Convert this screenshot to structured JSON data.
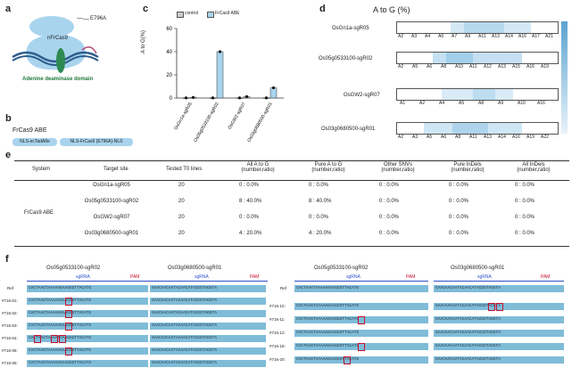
{
  "panels": {
    "a": "a",
    "b": "b",
    "c": "c",
    "d": "d",
    "e": "e",
    "f": "f"
  },
  "panel_a": {
    "mutation": "E796A",
    "protein": "nFrCas9",
    "domain": "Adenine deaminase domain"
  },
  "panel_b": {
    "title": "FrCas9 ABE",
    "parts": [
      "NLS-ecTadA8e",
      "NLS-FrCas9 (E796A)-NLS"
    ]
  },
  "panel_c": {
    "legend": [
      "control",
      "FrCas9 ABE"
    ],
    "chart_data": {
      "type": "bar",
      "categories": [
        "OsGn1a-sgR05",
        "Os05g0533100-sgR02",
        "OsGW2-sgR07",
        "Os03g0680500-sgR01"
      ],
      "series": [
        {
          "name": "control",
          "values": [
            0.1,
            0.1,
            0.1,
            0.1
          ]
        },
        {
          "name": "FrCas9 ABE",
          "values": [
            0.5,
            40,
            1.2,
            8.8
          ]
        }
      ],
      "ylabel": "A to G(%)",
      "yticks": [
        "0",
        "20",
        "40",
        "60"
      ],
      "ylim": [
        0,
        60
      ]
    }
  },
  "panel_d": {
    "title": "A to G (%)",
    "sites": [
      {
        "name": "OsGn1a-sgR05",
        "ticks": [
          "A2",
          "A3",
          "A4",
          "A6",
          "A7",
          "A9",
          "A11",
          "A13",
          "A14",
          "A16",
          "A17",
          "A21"
        ]
      },
      {
        "name": "Os05g0533100-sgR02",
        "ticks": [
          "A2",
          "A5",
          "A6",
          "A8",
          "A10",
          "A11",
          "A12",
          "A13",
          "A15",
          "A16",
          "A19"
        ]
      },
      {
        "name": "OsGW2-sgR07",
        "ticks": [
          "A1",
          "A2",
          "A4",
          "A5",
          "A8",
          "A9",
          "A10",
          "A16"
        ]
      },
      {
        "name": "Os03g0680500-sgR01",
        "ticks": [
          "A2",
          "A3",
          "A5",
          "A6",
          "A8",
          "A11",
          "A13",
          "A14",
          "A16",
          "A19",
          "A22"
        ]
      }
    ]
  },
  "panel_e": {
    "headers": [
      "System",
      "Target site",
      "Tested T0 lines",
      "All A to G\n(number,ratio)",
      "Pure A to G\n(number,ratio)",
      "Other SNVs\n(number,ratio)",
      "Pure InDels\n(number,ratio)",
      "All InDels\n(number,ratio)"
    ],
    "system": "FrCas9 ABE",
    "rows": [
      [
        "OsGn1a-sgR05",
        "20",
        "0 : 0.0%",
        "0 : 0.0%",
        "0 : 0.0%",
        "0 : 0.0%",
        "0 : 0.0%"
      ],
      [
        "Os05g0533100-sgR02",
        "20",
        "8 : 40.0%",
        "8 : 40.0%",
        "0 : 0.0%",
        "0 : 0.0%",
        "0 : 0.0%"
      ],
      [
        "OsGW2-sgR07",
        "20",
        "0 : 0.0%",
        "0 : 0.0%",
        "0 : 0.0%",
        "0 : 0.0%",
        "0 : 0.0%"
      ],
      [
        "Os03g0680500-sgR01",
        "20",
        "4 : 20.0%",
        "4 : 20.0%",
        "0 : 0.0%",
        "0 : 0.0%",
        "0 : 0.0%"
      ]
    ]
  },
  "panel_f": {
    "left": {
      "titles": [
        "Os05g0533100-sgR02",
        "Os03g0680500-sgR01"
      ],
      "sgrna": "sgRNA",
      "pam": "PAM",
      "rows": [
        "Ref",
        "#716-01:",
        "#716-02:",
        "#716-03:",
        "#716-04:",
        "#716-05:",
        "#716-06:"
      ],
      "seq1": "CACTAAGTAAAAAGAAGGGTTACATG",
      "seq2": "GAACAACAATACAACATACGGTAGGTA"
    },
    "right": {
      "titles": [
        "Os05g0533100-sgR02",
        "Os03g0680500-sgR01"
      ],
      "sgrna": "sgRNA",
      "pam": "PAM",
      "rows": [
        "Ref",
        "#716-10:",
        "#716-11:",
        "#716-12:",
        "#716-18:",
        "#716-20:"
      ],
      "seq1": "CACTAAGTAAAAAGAAGGGTTACATG",
      "seq2": "GAACAACAATACAACATACGGTAGGTA"
    }
  }
}
